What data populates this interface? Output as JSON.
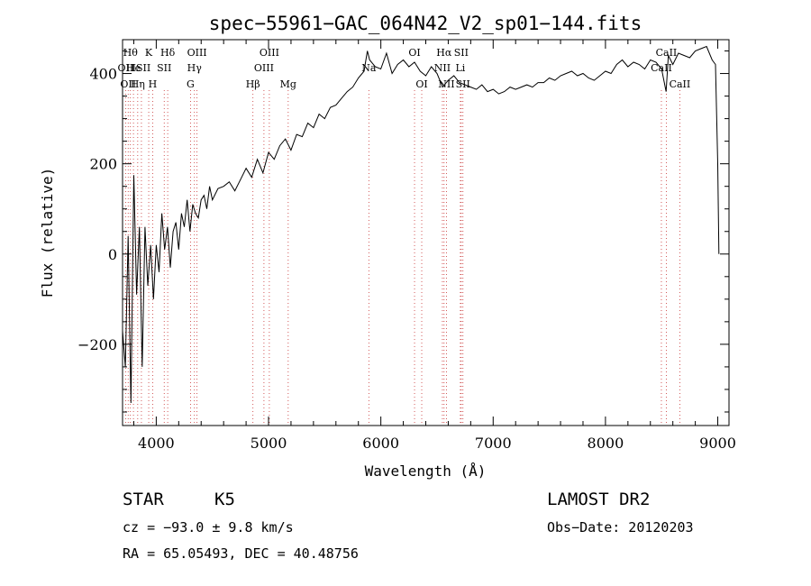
{
  "chart_data": {
    "type": "line",
    "title": "spec−55961−GAC_064N42_V2_sp01−144.fits",
    "xlabel": "Wavelength (Å)",
    "ylabel": "Flux (relative)",
    "xlim": [
      3700,
      9100
    ],
    "ylim": [
      -380,
      475
    ],
    "x_ticks": [
      4000,
      5000,
      6000,
      7000,
      8000,
      9000
    ],
    "y_ticks": [
      -200,
      0,
      200,
      400
    ],
    "grid": false,
    "legend": "none",
    "series": [
      {
        "color": "#000000",
        "x": [
          3700,
          3725,
          3750,
          3775,
          3800,
          3825,
          3850,
          3875,
          3900,
          3925,
          3950,
          3975,
          4000,
          4025,
          4050,
          4075,
          4100,
          4125,
          4150,
          4175,
          4200,
          4225,
          4250,
          4275,
          4300,
          4325,
          4350,
          4375,
          4400,
          4425,
          4450,
          4475,
          4500,
          4550,
          4600,
          4650,
          4700,
          4750,
          4800,
          4850,
          4900,
          4950,
          5000,
          5050,
          5100,
          5150,
          5200,
          5250,
          5300,
          5350,
          5400,
          5450,
          5500,
          5550,
          5600,
          5650,
          5700,
          5750,
          5800,
          5850,
          5880,
          5900,
          5950,
          6000,
          6050,
          6100,
          6150,
          6200,
          6250,
          6300,
          6350,
          6400,
          6450,
          6500,
          6550,
          6600,
          6650,
          6700,
          6750,
          6800,
          6850,
          6900,
          6950,
          7000,
          7050,
          7100,
          7150,
          7200,
          7250,
          7300,
          7350,
          7400,
          7450,
          7500,
          7550,
          7600,
          7650,
          7700,
          7750,
          7800,
          7850,
          7900,
          7950,
          8000,
          8050,
          8100,
          8150,
          8200,
          8250,
          8300,
          8350,
          8400,
          8450,
          8500,
          8540,
          8560,
          8600,
          8650,
          8700,
          8750,
          8800,
          8850,
          8900,
          8950,
          8980,
          9000,
          9010
        ],
        "y": [
          -170,
          -250,
          40,
          -330,
          175,
          -90,
          60,
          -250,
          60,
          -70,
          20,
          -100,
          20,
          -40,
          90,
          10,
          60,
          -30,
          50,
          70,
          10,
          90,
          60,
          120,
          50,
          110,
          90,
          80,
          120,
          130,
          100,
          150,
          120,
          145,
          150,
          160,
          140,
          165,
          190,
          170,
          210,
          180,
          225,
          210,
          240,
          255,
          230,
          265,
          260,
          290,
          280,
          310,
          300,
          325,
          330,
          345,
          360,
          370,
          390,
          405,
          450,
          430,
          415,
          410,
          445,
          400,
          420,
          430,
          415,
          425,
          405,
          395,
          415,
          400,
          370,
          385,
          395,
          380,
          375,
          370,
          365,
          375,
          360,
          365,
          355,
          360,
          370,
          365,
          370,
          375,
          370,
          380,
          380,
          390,
          385,
          395,
          400,
          405,
          395,
          400,
          390,
          385,
          395,
          405,
          400,
          420,
          430,
          415,
          425,
          420,
          410,
          430,
          425,
          410,
          360,
          440,
          420,
          445,
          440,
          435,
          450,
          455,
          460,
          430,
          420,
          200,
          0
        ]
      }
    ],
    "lines": [
      {
        "wavelength": 3727,
        "label": "OII",
        "row": 1
      },
      {
        "wavelength": 3750,
        "label": "OII",
        "row": 2
      },
      {
        "wavelength": 3770,
        "label": "Hθ",
        "row": 0
      },
      {
        "wavelength": 3797,
        "label": "He",
        "row": 1
      },
      {
        "wavelength": 3835,
        "label": "Hη",
        "row": 2
      },
      {
        "wavelength": 3868,
        "label": "ISII",
        "row": 1
      },
      {
        "wavelength": 3933,
        "label": "K",
        "row": 0
      },
      {
        "wavelength": 3968,
        "label": "H",
        "row": 2
      },
      {
        "wavelength": 4071,
        "label": "SII",
        "row": 1
      },
      {
        "wavelength": 4102,
        "label": "Hδ",
        "row": 0
      },
      {
        "wavelength": 4305,
        "label": "G",
        "row": 2
      },
      {
        "wavelength": 4340,
        "label": "Hγ",
        "row": 1
      },
      {
        "wavelength": 4363,
        "label": "OIII",
        "row": 0
      },
      {
        "wavelength": 4861,
        "label": "Hβ",
        "row": 2
      },
      {
        "wavelength": 4959,
        "label": "OIII",
        "row": 1
      },
      {
        "wavelength": 5007,
        "label": "OIII",
        "row": 0
      },
      {
        "wavelength": 5175,
        "label": "Mg",
        "row": 2
      },
      {
        "wavelength": 5893,
        "label": "Na",
        "row": 1
      },
      {
        "wavelength": 6300,
        "label": "OI",
        "row": 0
      },
      {
        "wavelength": 6364,
        "label": "OI",
        "row": 2
      },
      {
        "wavelength": 6548,
        "label": "NII",
        "row": 1
      },
      {
        "wavelength": 6563,
        "label": "Hα",
        "row": 0
      },
      {
        "wavelength": 6584,
        "label": "NII",
        "row": 2
      },
      {
        "wavelength": 6708,
        "label": "Li",
        "row": 1
      },
      {
        "wavelength": 6716,
        "label": "SII",
        "row": 0
      },
      {
        "wavelength": 6731,
        "label": "SII",
        "row": 2
      },
      {
        "wavelength": 8498,
        "label": "CaII",
        "row": 1
      },
      {
        "wavelength": 8542,
        "label": "CaII",
        "row": 0
      },
      {
        "wavelength": 8662,
        "label": "CaII",
        "row": 2
      }
    ]
  },
  "info": {
    "class": "STAR",
    "subclass": "K5",
    "survey": "LAMOST DR2",
    "cz": "cz = −93.0 ± 9.8 km/s",
    "obs_date": "Obs−Date: 20120203",
    "coords": "RA =  65.05493, DEC =  40.48756"
  }
}
